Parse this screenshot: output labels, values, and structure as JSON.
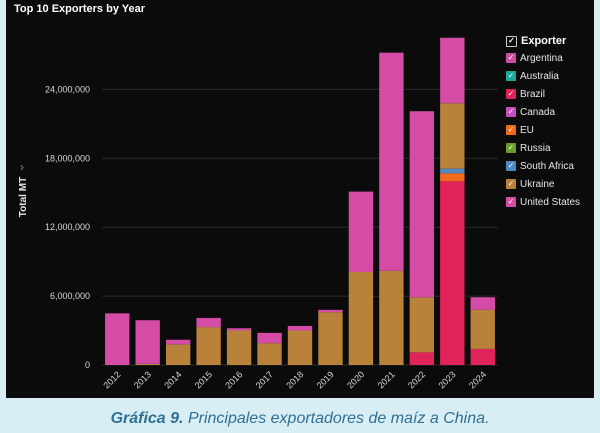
{
  "chart_data": {
    "type": "bar",
    "stacked": true,
    "title": "Top 10 Exporters by Year",
    "ylabel": "Total MT",
    "xlabel": "",
    "ylim": [
      0,
      29000000
    ],
    "yticks": [
      0,
      6000000,
      12000000,
      18000000,
      24000000
    ],
    "ytick_labels": [
      "0",
      "6,000,000",
      "12,000,000",
      "18,000,000",
      "24,000,000"
    ],
    "categories": [
      "2012",
      "2013",
      "2014",
      "2015",
      "2016",
      "2017",
      "2018",
      "2019",
      "2020",
      "2021",
      "2022",
      "2023",
      "2024"
    ],
    "legend_title": "Exporter",
    "legend_position": "right",
    "series": [
      {
        "name": "Argentina",
        "color": "#cc4fa6",
        "values": [
          0,
          0,
          0,
          0,
          0,
          0,
          0,
          0,
          0,
          0,
          0,
          0,
          0
        ]
      },
      {
        "name": "Australia",
        "color": "#1aa99b",
        "values": [
          0,
          0,
          0,
          0,
          0,
          0,
          0,
          0,
          0,
          0,
          0,
          0,
          0
        ]
      },
      {
        "name": "Brazil",
        "color": "#e0245a",
        "values": [
          0,
          0,
          0,
          0,
          0,
          0,
          0,
          0,
          0,
          0,
          1100000,
          16000000,
          1400000
        ]
      },
      {
        "name": "Canada",
        "color": "#c44fc0",
        "values": [
          0,
          0,
          0,
          0,
          0,
          0,
          0,
          0,
          0,
          0,
          0,
          0,
          0
        ]
      },
      {
        "name": "EU",
        "color": "#f26b1d",
        "values": [
          0,
          0,
          0,
          0,
          0,
          0,
          0,
          0,
          0,
          0,
          0,
          700000,
          0
        ]
      },
      {
        "name": "Russia",
        "color": "#6a9e2a",
        "values": [
          0,
          0,
          0,
          0,
          0,
          0,
          0,
          0,
          0,
          0,
          0,
          0,
          0
        ]
      },
      {
        "name": "South Africa",
        "color": "#4f86c4",
        "values": [
          0,
          0,
          0,
          0,
          0,
          0,
          0,
          0,
          0,
          0,
          0,
          400000,
          0
        ]
      },
      {
        "name": "Ukraine",
        "color": "#b8823a",
        "values": [
          0,
          100000,
          1800000,
          3300000,
          3000000,
          1900000,
          3000000,
          4600000,
          8100000,
          8200000,
          4800000,
          5700000,
          3400000
        ]
      },
      {
        "name": "United States",
        "color": "#d44ca6",
        "values": [
          4500000,
          3800000,
          400000,
          800000,
          200000,
          900000,
          400000,
          200000,
          7000000,
          19000000,
          16200000,
          5700000,
          1100000
        ]
      }
    ],
    "grid": true
  },
  "legend_icons": {
    "title": "checkbox-icon",
    "items": "check-icon"
  },
  "caption": {
    "label": "Gráfica 9.",
    "text": " Principales exportadores de maíz a China."
  }
}
